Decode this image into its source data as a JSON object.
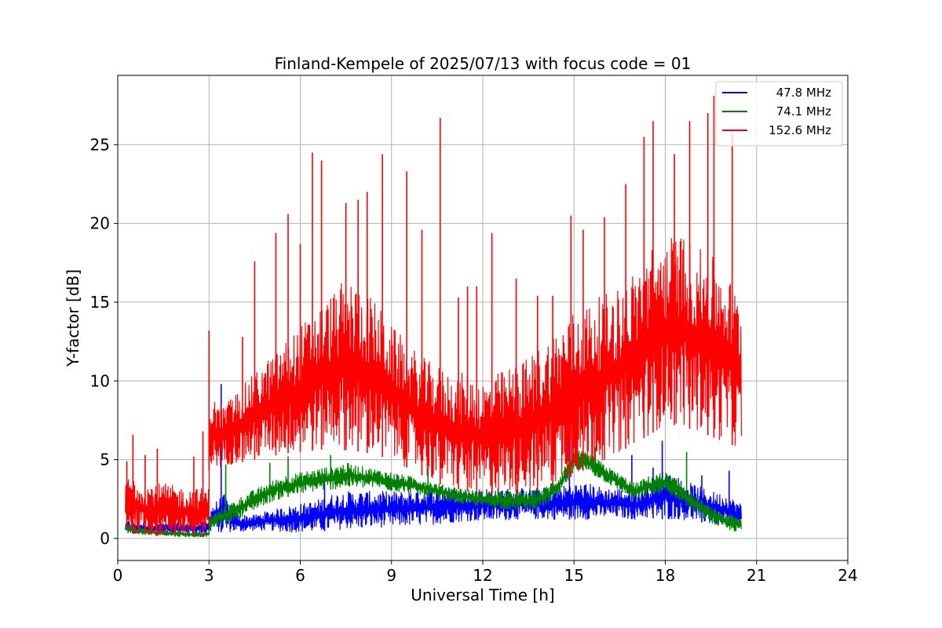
{
  "chart_data": {
    "type": "line",
    "title": "Finland-Kempele of 2025/07/13 with focus code = 01",
    "xlabel": "Universal Time [h]",
    "ylabel": "Y-factor [dB]",
    "xlim": [
      0,
      24
    ],
    "ylim": [
      -1.4,
      29.4
    ],
    "xticks": [
      0,
      3,
      6,
      9,
      12,
      15,
      18,
      21,
      24
    ],
    "yticks": [
      0,
      5,
      10,
      15,
      20,
      25
    ],
    "grid": true,
    "legend_position": "top-right",
    "series": [
      {
        "name": "47.8 MHz",
        "color": "#0000ff",
        "envelope": {
          "x": [
            0.25,
            0.5,
            1.0,
            1.5,
            2.0,
            2.5,
            2.95,
            3.0,
            3.5,
            4.0,
            4.5,
            5.0,
            5.5,
            6.0,
            6.5,
            7.0,
            7.5,
            8.0,
            8.5,
            9.0,
            9.5,
            10.0,
            10.5,
            11.0,
            11.5,
            12.0,
            12.5,
            13.0,
            13.5,
            14.0,
            14.5,
            15.0,
            15.5,
            16.0,
            16.5,
            17.0,
            17.5,
            18.0,
            18.5,
            19.0,
            19.5,
            20.0,
            20.5
          ],
          "low": [
            0.3,
            0.3,
            0.3,
            0.3,
            0.3,
            0.3,
            0.3,
            0.4,
            0.4,
            0.4,
            0.5,
            0.5,
            0.4,
            0.4,
            0.4,
            0.5,
            0.6,
            0.6,
            0.7,
            0.7,
            0.8,
            0.8,
            0.9,
            1.0,
            1.1,
            1.1,
            1.1,
            1.2,
            1.2,
            1.2,
            1.2,
            1.2,
            1.2,
            1.3,
            1.3,
            1.2,
            1.3,
            1.2,
            1.2,
            1.1,
            0.9,
            0.8,
            0.7
          ],
          "high": [
            1.2,
            1.0,
            1.0,
            1.0,
            1.0,
            1.0,
            1.1,
            2.0,
            2.8,
            1.5,
            1.5,
            1.8,
            2.0,
            2.2,
            2.4,
            2.8,
            3.0,
            3.0,
            3.0,
            3.0,
            3.0,
            3.2,
            3.2,
            3.2,
            3.2,
            3.2,
            3.2,
            3.2,
            3.2,
            3.2,
            3.3,
            3.5,
            3.5,
            3.2,
            3.2,
            3.0,
            3.6,
            4.5,
            3.8,
            3.4,
            3.0,
            2.8,
            2.2
          ]
        },
        "spikes": [
          [
            3.4,
            9.8
          ],
          [
            6.8,
            3.8
          ],
          [
            14.85,
            12.5
          ],
          [
            16.9,
            5.3
          ],
          [
            17.6,
            4.5
          ],
          [
            17.9,
            6.2
          ],
          [
            19.2,
            4.0
          ],
          [
            20.1,
            4.3
          ]
        ]
      },
      {
        "name": "74.1 MHz",
        "color": "#008000",
        "envelope": {
          "x": [
            0.25,
            0.5,
            1.0,
            1.5,
            2.0,
            2.5,
            2.95,
            3.0,
            3.5,
            4.0,
            4.5,
            5.0,
            5.5,
            6.0,
            6.5,
            7.0,
            7.5,
            8.0,
            8.5,
            9.0,
            9.5,
            10.0,
            10.5,
            11.0,
            11.5,
            12.0,
            12.5,
            13.0,
            13.5,
            14.0,
            14.5,
            15.0,
            15.5,
            16.0,
            16.5,
            17.0,
            17.5,
            18.0,
            18.5,
            19.0,
            19.5,
            20.0,
            20.5
          ],
          "low": [
            0.5,
            0.3,
            0.2,
            0.2,
            0.1,
            0.1,
            0.1,
            0.5,
            0.9,
            1.3,
            1.8,
            2.3,
            2.6,
            2.8,
            3.0,
            3.1,
            3.2,
            3.2,
            3.2,
            3.0,
            2.9,
            2.7,
            2.5,
            2.3,
            2.1,
            2.0,
            1.9,
            1.8,
            1.8,
            2.0,
            2.6,
            4.3,
            4.2,
            3.6,
            3.0,
            2.4,
            2.7,
            2.8,
            2.4,
            1.6,
            1.0,
            0.5,
            0.4
          ],
          "high": [
            0.9,
            0.8,
            0.6,
            0.5,
            0.5,
            0.4,
            0.4,
            1.4,
            2.0,
            2.6,
            3.1,
            3.6,
            4.0,
            4.2,
            4.4,
            4.6,
            4.8,
            4.6,
            4.4,
            4.2,
            4.0,
            3.8,
            3.5,
            3.3,
            3.1,
            3.0,
            3.0,
            3.0,
            3.0,
            3.2,
            4.0,
            5.7,
            5.4,
            4.7,
            4.1,
            3.5,
            4.0,
            4.2,
            3.6,
            2.7,
            2.0,
            1.6,
            1.3
          ]
        },
        "spikes": [
          [
            3.55,
            4.7
          ],
          [
            5.0,
            4.8
          ],
          [
            5.6,
            5.2
          ],
          [
            7.0,
            5.3
          ],
          [
            10.2,
            4.5
          ],
          [
            14.95,
            6.0
          ],
          [
            15.7,
            5.8
          ],
          [
            18.7,
            5.5
          ]
        ]
      },
      {
        "name": "152.6 MHz",
        "color": "#ff0000",
        "envelope": {
          "x": [
            0.25,
            0.5,
            1.0,
            1.5,
            2.0,
            2.5,
            2.95,
            3.0,
            3.5,
            4.0,
            4.5,
            5.0,
            5.5,
            6.0,
            6.5,
            7.0,
            7.5,
            8.0,
            8.5,
            9.0,
            9.5,
            10.0,
            10.5,
            11.0,
            11.5,
            12.0,
            12.5,
            13.0,
            13.5,
            14.0,
            14.5,
            15.0,
            15.5,
            16.0,
            16.5,
            17.0,
            17.5,
            18.0,
            18.5,
            19.0,
            19.5,
            20.0,
            20.5
          ],
          "low": [
            0.8,
            0.3,
            0.2,
            0.1,
            0.1,
            0.1,
            0.1,
            4.3,
            4.6,
            4.8,
            5.0,
            5.2,
            5.4,
            5.5,
            5.6,
            5.7,
            5.6,
            5.5,
            5.3,
            5.0,
            4.5,
            4.0,
            3.5,
            3.2,
            3.0,
            2.8,
            2.8,
            2.9,
            3.0,
            3.2,
            3.5,
            4.0,
            4.5,
            5.0,
            5.5,
            6.0,
            6.6,
            7.2,
            7.2,
            6.8,
            6.5,
            6.0,
            5.8
          ],
          "high": [
            3.8,
            4.0,
            3.5,
            3.5,
            3.3,
            3.2,
            3.2,
            9.0,
            8.5,
            9.5,
            10.5,
            11.5,
            12.5,
            13.5,
            14.5,
            15.5,
            16.5,
            16.0,
            15.0,
            13.5,
            12.5,
            11.5,
            11.0,
            10.5,
            10.5,
            10.0,
            10.5,
            11.0,
            11.5,
            12.5,
            13.5,
            14.5,
            15.0,
            15.5,
            16.0,
            17.0,
            18.5,
            19.0,
            19.5,
            18.5,
            18.0,
            17.0,
            15.0
          ]
        },
        "spikes": [
          [
            0.3,
            4.9
          ],
          [
            0.5,
            6.6
          ],
          [
            0.9,
            5.3
          ],
          [
            1.3,
            5.7
          ],
          [
            2.5,
            5.2
          ],
          [
            2.8,
            6.8
          ],
          [
            3.0,
            13.2
          ],
          [
            4.1,
            12.8
          ],
          [
            4.5,
            17.6
          ],
          [
            5.2,
            19.4
          ],
          [
            5.6,
            20.6
          ],
          [
            6.0,
            18.7
          ],
          [
            6.4,
            24.5
          ],
          [
            6.7,
            24.0
          ],
          [
            7.5,
            21.3
          ],
          [
            7.9,
            21.5
          ],
          [
            8.2,
            22.0
          ],
          [
            8.7,
            24.4
          ],
          [
            9.5,
            23.3
          ],
          [
            10.0,
            19.6
          ],
          [
            10.6,
            26.7
          ],
          [
            11.2,
            15.3
          ],
          [
            11.5,
            16.0
          ],
          [
            11.8,
            16.0
          ],
          [
            12.3,
            19.4
          ],
          [
            13.1,
            16.5
          ],
          [
            13.8,
            15.4
          ],
          [
            14.3,
            15.4
          ],
          [
            14.9,
            20.5
          ],
          [
            15.3,
            19.6
          ],
          [
            16.0,
            20.4
          ],
          [
            16.7,
            22.5
          ],
          [
            17.3,
            25.5
          ],
          [
            17.6,
            26.5
          ],
          [
            18.3,
            24.4
          ],
          [
            18.8,
            26.5
          ],
          [
            19.4,
            27.0
          ],
          [
            19.6,
            28.1
          ],
          [
            20.2,
            25.7
          ]
        ]
      }
    ]
  }
}
